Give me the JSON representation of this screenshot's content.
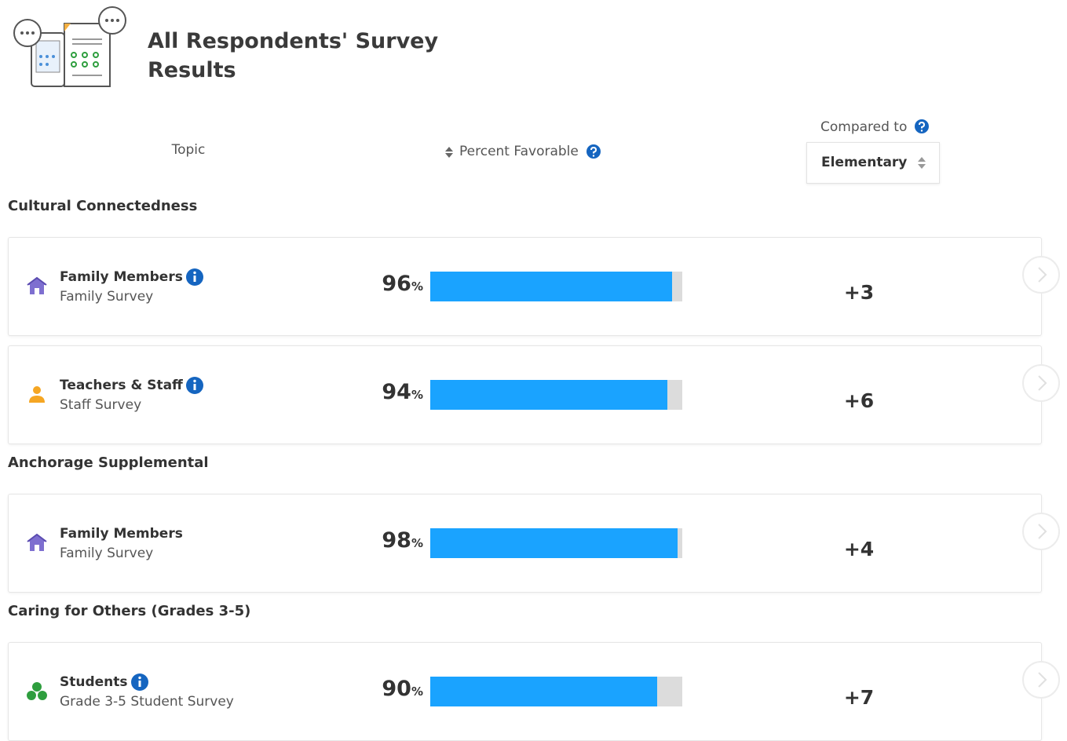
{
  "header": {
    "title": "All Respondents' Survey Results"
  },
  "columns": {
    "topic": "Topic",
    "percent": "Percent Favorable",
    "compared_label": "Compared to",
    "compared_select": "Elementary"
  },
  "unit": "%",
  "sections": [
    {
      "title": "Cultural Connectedness",
      "rows": [
        {
          "respondent": "Family Members",
          "survey": "Family Survey",
          "percent": 96,
          "change": "+3",
          "icon": "family",
          "info": true
        },
        {
          "respondent": "Teachers & Staff",
          "survey": "Staff Survey",
          "percent": 94,
          "change": "+6",
          "icon": "staff",
          "info": true
        }
      ]
    },
    {
      "title": "Anchorage Supplemental",
      "rows": [
        {
          "respondent": "Family Members",
          "survey": "Family Survey",
          "percent": 98,
          "change": "+4",
          "icon": "family",
          "info": false
        }
      ]
    },
    {
      "title": "Caring for Others (Grades 3-5)",
      "rows": [
        {
          "respondent": "Students",
          "survey": "Grade 3-5 Student Survey",
          "percent": 90,
          "change": "+7",
          "icon": "students",
          "info": true
        }
      ]
    }
  ]
}
